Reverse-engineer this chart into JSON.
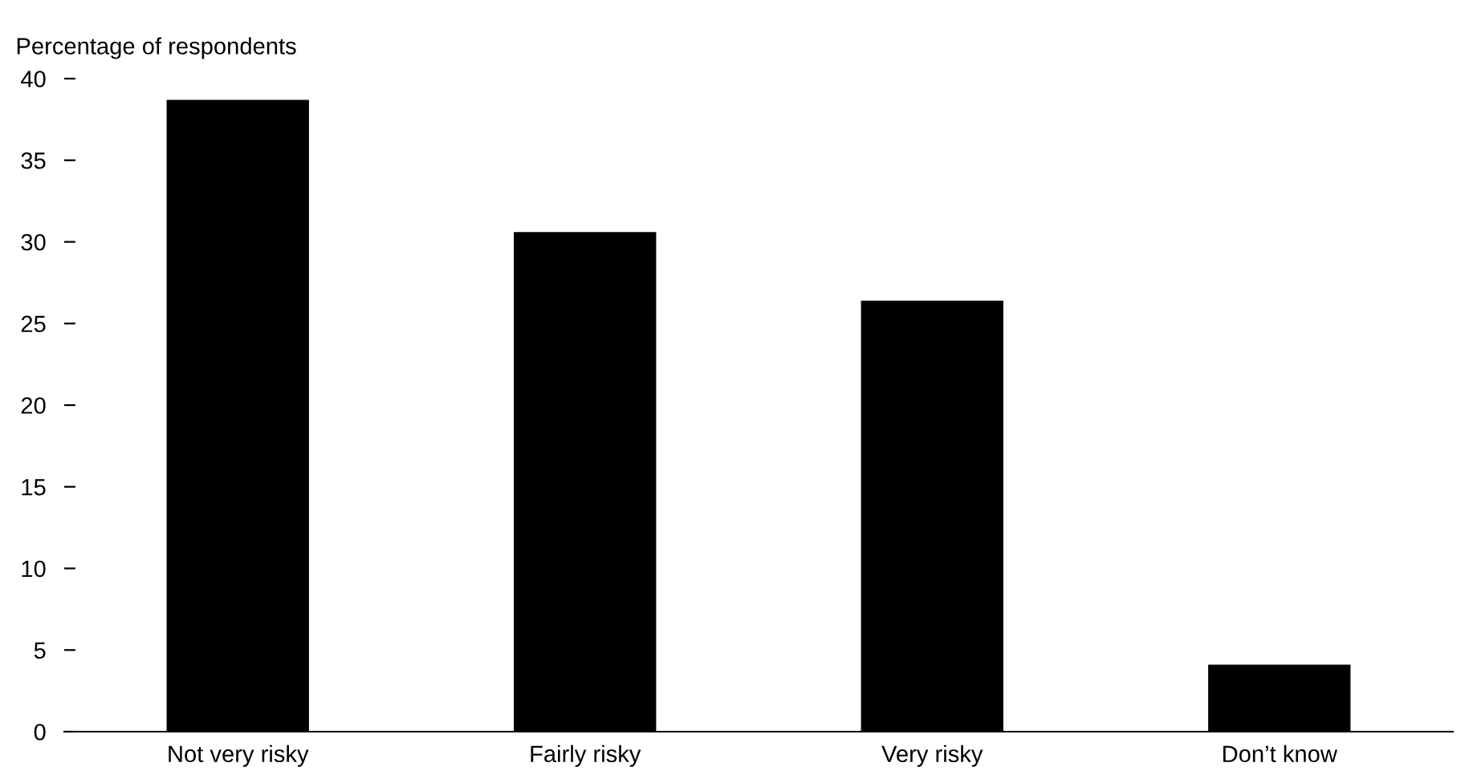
{
  "chart_data": {
    "type": "bar",
    "ylabel": "Percentage of respondents",
    "categories": [
      "Not very risky",
      "Fairly risky",
      "Very risky",
      "Don’t know"
    ],
    "values": [
      38.7,
      30.6,
      26.4,
      4.1
    ],
    "color": "#000000",
    "ylim": [
      0,
      40
    ],
    "yticks": [
      0,
      5,
      10,
      15,
      20,
      25,
      30,
      35,
      40
    ],
    "grid": false,
    "legend": false
  }
}
